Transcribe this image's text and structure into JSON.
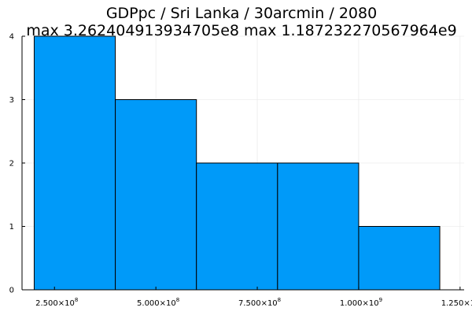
{
  "chart_data": {
    "type": "bar",
    "title_line1": "GDPpc / Sri Lanka / 30arcmin / 2080",
    "title_line2": "max 3.262404913934705e8  max 1.187232270567964e9",
    "xlabel": "",
    "ylabel": "",
    "bins": [
      {
        "x0": 200000000,
        "x1": 400000000,
        "count": 4
      },
      {
        "x0": 400000000,
        "x1": 600000000,
        "count": 3
      },
      {
        "x0": 600000000,
        "x1": 800000000,
        "count": 2
      },
      {
        "x0": 800000000,
        "x1": 1000000000,
        "count": 2
      },
      {
        "x0": 1000000000,
        "x1": 1200000000,
        "count": 1
      }
    ],
    "xlim": [
      170000000,
      1260000000
    ],
    "ylim": [
      0,
      4
    ],
    "x_ticks": [
      {
        "value": 250000000,
        "mantissa": "2.500×10",
        "exp": "8"
      },
      {
        "value": 500000000,
        "mantissa": "5.000×10",
        "exp": "8"
      },
      {
        "value": 750000000,
        "mantissa": "7.500×10",
        "exp": "8"
      },
      {
        "value": 1000000000,
        "mantissa": "1.000×10",
        "exp": "9"
      },
      {
        "value": 1250000000,
        "mantissa": "1.250×10",
        "exp": "9"
      }
    ],
    "y_ticks": [
      {
        "value": 0,
        "label": "0"
      },
      {
        "value": 1,
        "label": "1"
      },
      {
        "value": 2,
        "label": "2"
      },
      {
        "value": 3,
        "label": "3"
      },
      {
        "value": 4,
        "label": "4"
      }
    ],
    "grid": true,
    "bar_color": "#009AF9",
    "edge_color": "#000000"
  }
}
